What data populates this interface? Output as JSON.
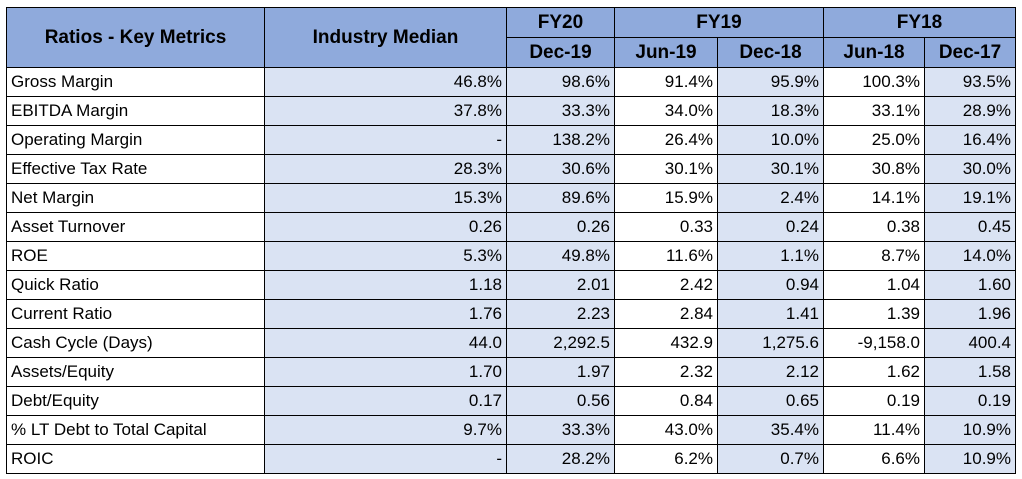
{
  "header": {
    "metric_col": "Ratios - Key Metrics",
    "median_col": "Industry Median",
    "fiscal_groups": [
      "FY20",
      "FY19",
      "FY18"
    ],
    "periods": [
      "Dec-19",
      "Jun-19",
      "Dec-18",
      "Jun-18",
      "Dec-17"
    ]
  },
  "rows": [
    {
      "label": "Gross Margin",
      "median": "46.8%",
      "values": [
        "98.6%",
        "91.4%",
        "95.9%",
        "100.3%",
        "93.5%"
      ]
    },
    {
      "label": "EBITDA Margin",
      "median": "37.8%",
      "values": [
        "33.3%",
        "34.0%",
        "18.3%",
        "33.1%",
        "28.9%"
      ]
    },
    {
      "label": "Operating Margin",
      "median": "-",
      "values": [
        "138.2%",
        "26.4%",
        "10.0%",
        "25.0%",
        "16.4%"
      ]
    },
    {
      "label": "Effective Tax Rate",
      "median": "28.3%",
      "values": [
        "30.6%",
        "30.1%",
        "30.1%",
        "30.8%",
        "30.0%"
      ]
    },
    {
      "label": "Net Margin",
      "median": "15.3%",
      "values": [
        "89.6%",
        "15.9%",
        "2.4%",
        "14.1%",
        "19.1%"
      ]
    },
    {
      "label": "Asset Turnover",
      "median": "0.26",
      "values": [
        "0.26",
        "0.33",
        "0.24",
        "0.38",
        "0.45"
      ]
    },
    {
      "label": "ROE",
      "median": "5.3%",
      "values": [
        "49.8%",
        "11.6%",
        "1.1%",
        "8.7%",
        "14.0%"
      ]
    },
    {
      "label": "Quick Ratio",
      "median": "1.18",
      "values": [
        "2.01",
        "2.42",
        "0.94",
        "1.04",
        "1.60"
      ]
    },
    {
      "label": "Current Ratio",
      "median": "1.76",
      "values": [
        "2.23",
        "2.84",
        "1.41",
        "1.39",
        "1.96"
      ]
    },
    {
      "label": "Cash Cycle (Days)",
      "median": "44.0",
      "values": [
        "2,292.5",
        "432.9",
        "1,275.6",
        "-9,158.0",
        "400.4"
      ]
    },
    {
      "label": "Assets/Equity",
      "median": "1.70",
      "values": [
        "1.97",
        "2.32",
        "2.12",
        "1.62",
        "1.58"
      ]
    },
    {
      "label": "Debt/Equity",
      "median": "0.17",
      "values": [
        "0.56",
        "0.84",
        "0.65",
        "0.19",
        "0.19"
      ]
    },
    {
      "label": "% LT Debt to Total Capital",
      "median": "9.7%",
      "values": [
        "33.3%",
        "43.0%",
        "35.4%",
        "11.4%",
        "10.9%"
      ]
    },
    {
      "label": "ROIC",
      "median": "-",
      "values": [
        "28.2%",
        "6.2%",
        "0.7%",
        "6.6%",
        "10.9%"
      ]
    }
  ],
  "colors": {
    "header_bg": "#8faadc",
    "shaded_cell_bg": "#dae3f3",
    "border": "#000000"
  }
}
